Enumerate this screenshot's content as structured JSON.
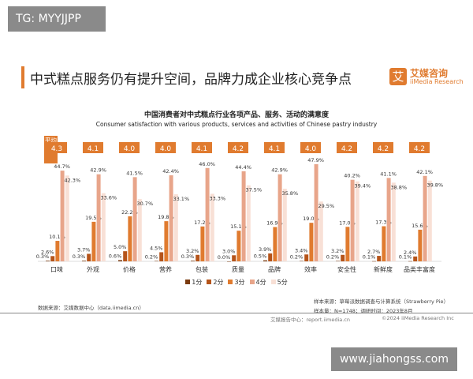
{
  "badge": "TG: MYYJJPP",
  "header": {
    "title": "中式糕点服务仍有提升空间，品牌力成企业核心竞争点",
    "logo_cn": "艾媒咨询",
    "logo_en": "iiMedia Research",
    "logo_mark": "艾"
  },
  "chart_data": {
    "type": "bar",
    "title": "中国消费者对中式糕点行业各项产品、服务、活动的满意度",
    "subtitle": "Consumer satisfaction with various products, services and activities of Chinese pastry industry",
    "avg_label": "平均分",
    "categories": [
      "口味",
      "外观",
      "价格",
      "营养",
      "包装",
      "质量",
      "品牌",
      "效率",
      "安全性",
      "新鲜度",
      "品类丰富度"
    ],
    "averages": [
      "4.3",
      "4.1",
      "4.0",
      "4.0",
      "4.1",
      "4.2",
      "4.1",
      "4.0",
      "4.2",
      "4.2",
      "4.2"
    ],
    "series": [
      {
        "name": "1分",
        "color": "#7a3b10",
        "values": [
          0.3,
          0.3,
          0.6,
          0.2,
          0.3,
          0.0,
          0.5,
          0.2,
          0.2,
          0.1,
          0.1
        ]
      },
      {
        "name": "2分",
        "color": "#b5541a",
        "values": [
          2.6,
          3.7,
          5.0,
          4.5,
          3.2,
          3.0,
          3.9,
          3.4,
          3.2,
          2.7,
          2.4
        ]
      },
      {
        "name": "3分",
        "color": "#e07b2f",
        "values": [
          10.1,
          19.5,
          22.2,
          19.8,
          17.2,
          15.1,
          16.9,
          19.0,
          17.0,
          17.3,
          15.6
        ]
      },
      {
        "name": "4分",
        "color": "#e8a58a",
        "values": [
          44.7,
          42.9,
          41.5,
          42.4,
          46.0,
          44.4,
          42.9,
          47.9,
          40.2,
          41.1,
          42.1
        ]
      },
      {
        "name": "5分",
        "color": "#f8e0d6",
        "values": [
          42.3,
          33.6,
          30.7,
          33.1,
          33.3,
          37.5,
          35.8,
          29.5,
          39.4,
          38.8,
          39.8
        ]
      }
    ],
    "unit": "%",
    "legend": "bottom",
    "avg_color": "#e07b2f"
  },
  "footer": {
    "source": "数据来源：艾媒数据中心（data.iimedia.cn）",
    "sample_src": "样本来源：草莓派数据调查与计算系统（Strawberry Pie）",
    "sample_n": "样本量：N=1748；调研时间：2023年8月",
    "report": "艾媒报告中心：report.iimedia.cn",
    "copyright": "©2024  iiMedia Research  Inc"
  },
  "watermark": "www.jiahongss.com"
}
